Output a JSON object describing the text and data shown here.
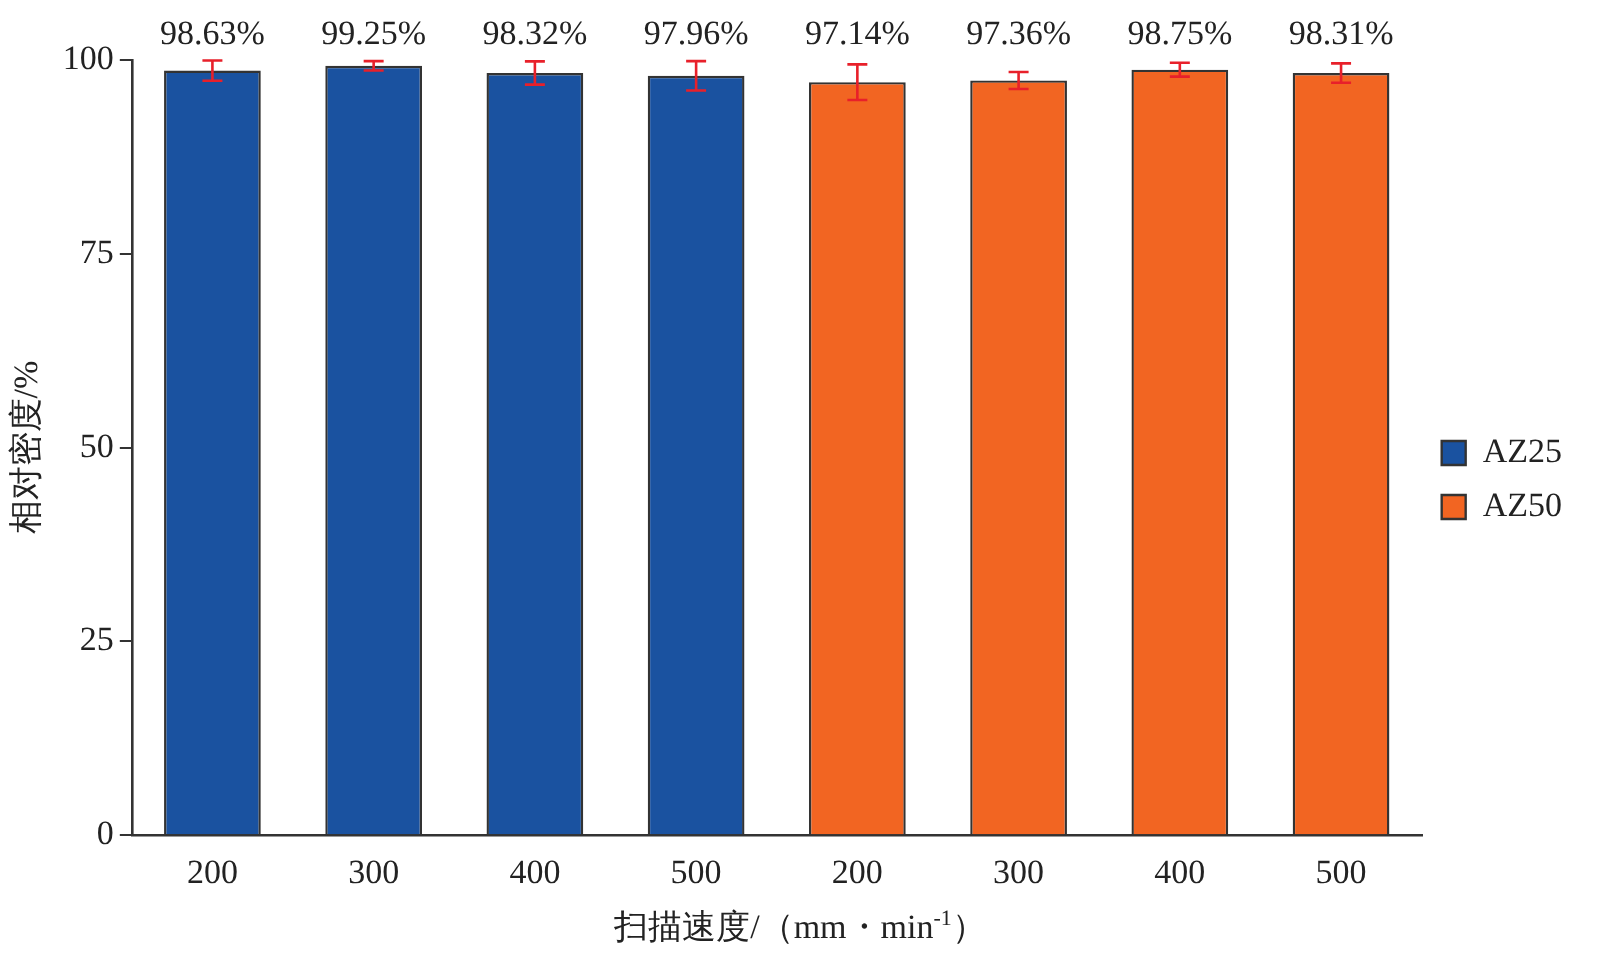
{
  "chart_data": {
    "type": "bar",
    "xlabel": "扫描速度/（mm・min$^{-1}$）",
    "ylabel": "相对密度/%",
    "categories": [
      "200",
      "300",
      "400",
      "500",
      "200",
      "300",
      "400",
      "500"
    ],
    "series": [
      {
        "name": "AZ25",
        "color": "#1a52a0",
        "values": [
          98.63,
          99.25,
          98.32,
          97.96,
          null,
          null,
          null,
          null
        ],
        "errors": [
          1.3,
          0.6,
          1.5,
          1.9,
          null,
          null,
          null,
          null
        ],
        "value_labels": [
          "98.63%",
          "99.25%",
          "98.32%",
          "97.96%",
          null,
          null,
          null,
          null
        ]
      },
      {
        "name": "AZ50",
        "color": "#f26522",
        "values": [
          null,
          null,
          null,
          null,
          97.14,
          97.36,
          98.75,
          98.31
        ],
        "errors": [
          null,
          null,
          null,
          null,
          2.3,
          1.1,
          0.9,
          1.25
        ],
        "value_labels": [
          null,
          null,
          null,
          null,
          "97.14%",
          "97.36%",
          "98.75%",
          "98.31%"
        ]
      }
    ],
    "ylim": [
      0,
      100
    ],
    "yticks": [
      0,
      25,
      50,
      75,
      100
    ],
    "grid": false,
    "legend": "right"
  }
}
